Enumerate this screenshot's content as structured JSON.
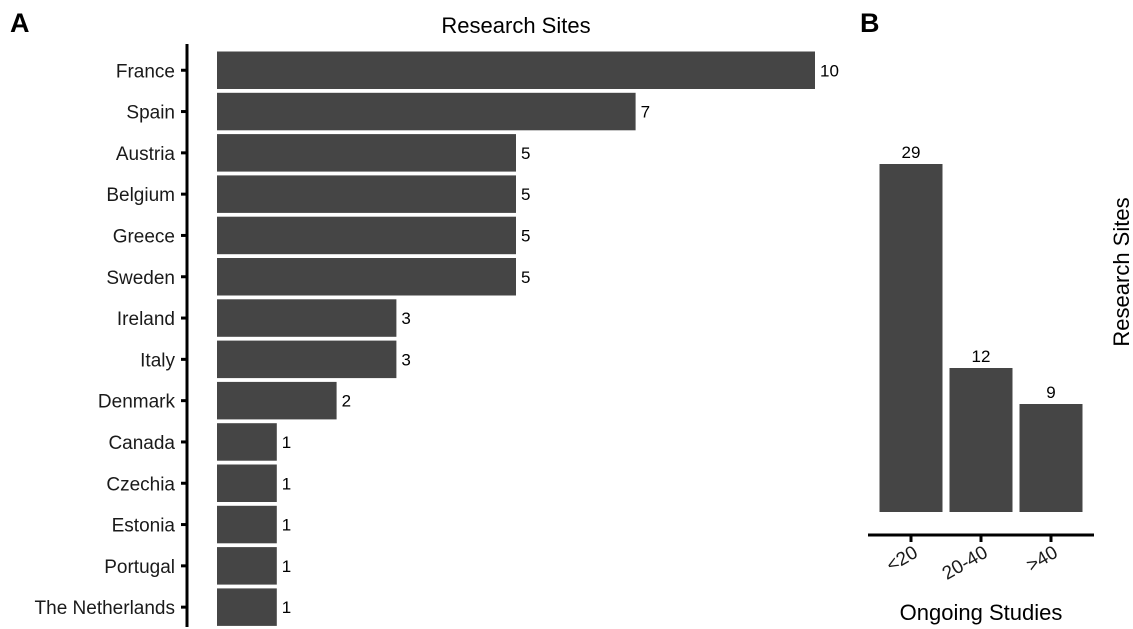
{
  "panels": {
    "a_label": "A",
    "b_label": "B"
  },
  "chart_data": [
    {
      "type": "bar",
      "orientation": "horizontal",
      "title": "Research Sites",
      "xlabel": "",
      "ylabel": "",
      "categories": [
        "France",
        "Spain",
        "Austria",
        "Belgium",
        "Greece",
        "Sweden",
        "Ireland",
        "Italy",
        "Denmark",
        "Canada",
        "Czechia",
        "Estonia",
        "Portugal",
        "The Netherlands"
      ],
      "values": [
        10,
        7,
        5,
        5,
        5,
        5,
        3,
        3,
        2,
        1,
        1,
        1,
        1,
        1
      ],
      "xlim": [
        0,
        10
      ],
      "grid": false,
      "bar_color": "#454545"
    },
    {
      "type": "bar",
      "orientation": "vertical",
      "title": "",
      "xlabel": "Ongoing Studies",
      "ylabel": "Research Sites",
      "categories": [
        "<20",
        "20-40",
        ">40"
      ],
      "values": [
        29,
        12,
        9
      ],
      "ylim": [
        0,
        29
      ],
      "grid": false,
      "bar_color": "#454545"
    }
  ]
}
